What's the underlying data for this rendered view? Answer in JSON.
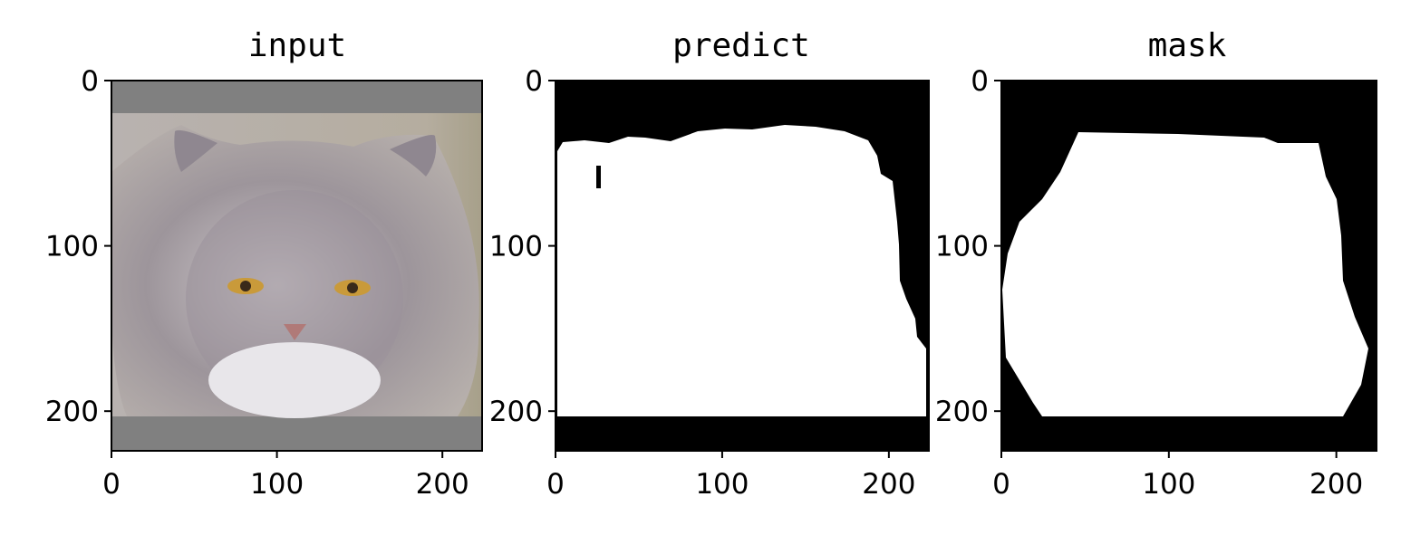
{
  "chart_data": [
    {
      "type": "image",
      "title": "input",
      "xlim": [
        0,
        224
      ],
      "ylim": [
        224,
        0
      ],
      "xticks": [
        0,
        100,
        200
      ],
      "yticks": [
        0,
        100,
        200
      ],
      "content": "photo",
      "colors": {
        "padding": "#808080",
        "fur": "#a8a0a6",
        "eyes": "#c99a3a"
      }
    },
    {
      "type": "image",
      "title": "predict",
      "xlim": [
        0,
        224
      ],
      "ylim": [
        224,
        0
      ],
      "xticks": [
        0,
        100,
        200
      ],
      "yticks": [
        0,
        100,
        200
      ],
      "content": "mask",
      "colors": {
        "background": "#000000",
        "foreground": "#ffffff"
      }
    },
    {
      "type": "image",
      "title": "mask",
      "xlim": [
        0,
        224
      ],
      "ylim": [
        224,
        0
      ],
      "xticks": [
        0,
        100,
        200
      ],
      "yticks": [
        0,
        100,
        200
      ],
      "content": "mask",
      "colors": {
        "background": "#000000",
        "foreground": "#ffffff"
      }
    }
  ]
}
